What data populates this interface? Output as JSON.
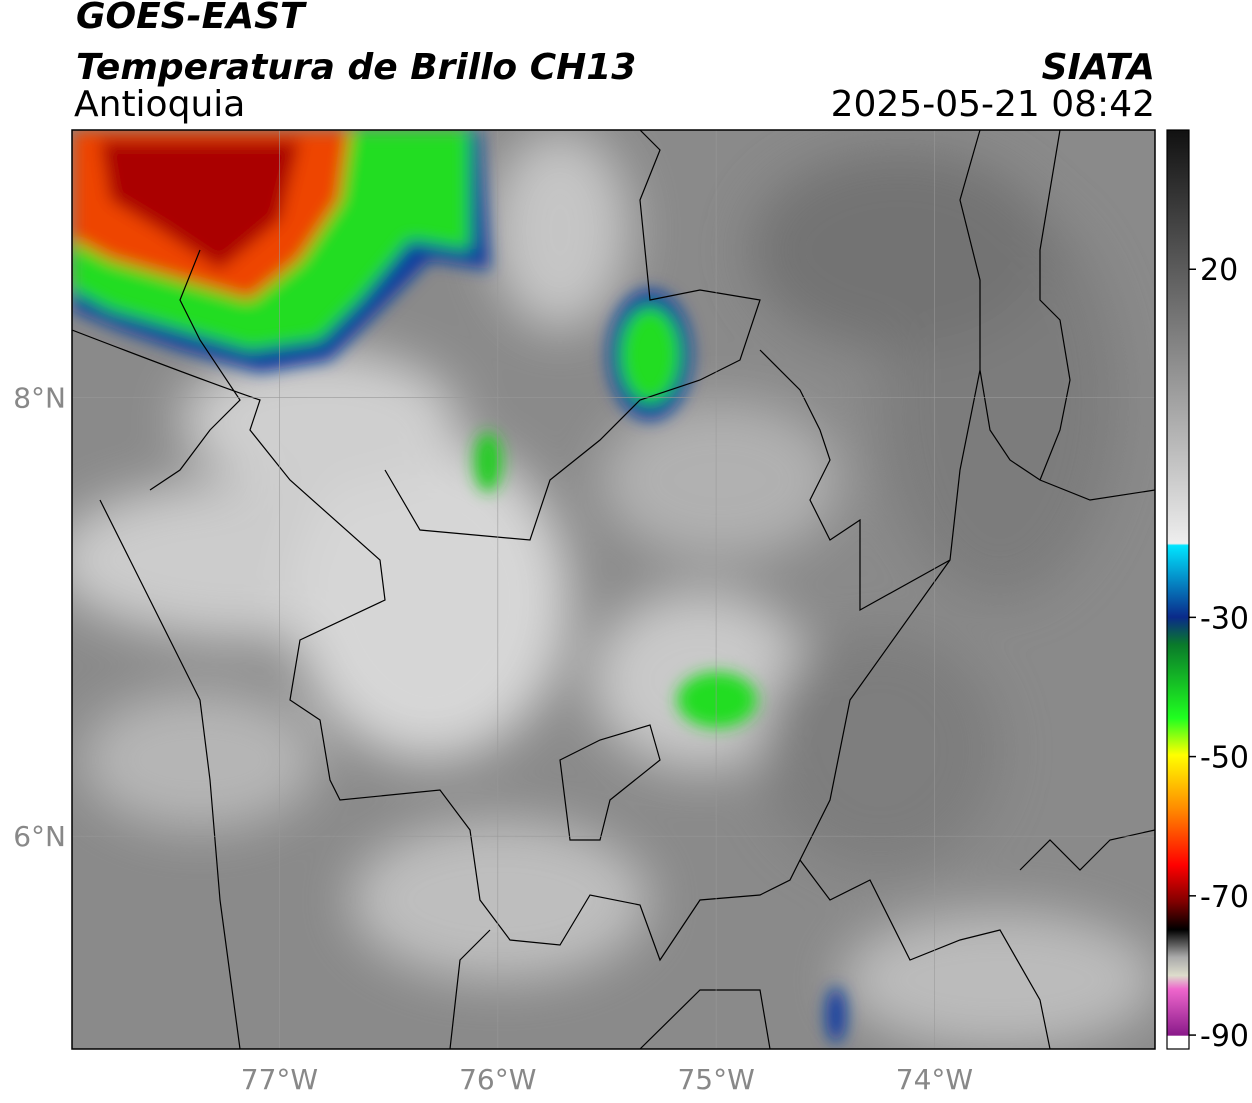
{
  "chart_data": {
    "type": "map",
    "title": "GOES-EAST",
    "subtitle": "Temperatura de Brillo CH13",
    "region": "Antioquia",
    "source": "SIATA",
    "timestamp": "2025-05-21 08:42",
    "xlim": [
      -77.95,
      -72.99
    ],
    "ylim": [
      5.03,
      9.22
    ],
    "xticks": [
      {
        "value": -77,
        "label": "77°W"
      },
      {
        "value": -76,
        "label": "76°W"
      },
      {
        "value": -75,
        "label": "75°W"
      },
      {
        "value": -74,
        "label": "74°W"
      }
    ],
    "yticks": [
      {
        "value": 8,
        "label": "8°N"
      },
      {
        "value": 6,
        "label": "6°N"
      }
    ],
    "grid": true,
    "colorbar_lim": [
      -92,
      40
    ],
    "colorbar_ticks": [
      20,
      -30,
      -50,
      -70,
      -90
    ]
  }
}
